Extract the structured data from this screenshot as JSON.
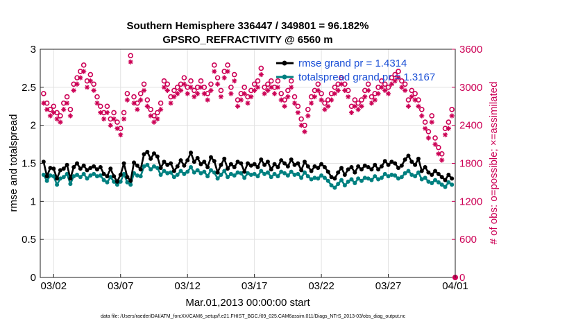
{
  "chart_data": {
    "type": "line",
    "title_line1": "Southern Hemisphere 336447 / 349801 = 96.182%",
    "title_line2": "GPSRO_REFRACTIVITY @ 6560 m",
    "xlabel": "Mar.01,2013 00:00:00 start",
    "ylabel_left": "rmse and totalspread",
    "ylabel_right": "# of obs: o=possible; ×=assimilated",
    "footnote": "data file: /Users/raeder/DAI/ATM_forcXX/CAM6_setup/f.e21.FHIST_BGC.f09_025.CAM6assim.011/Diags_NTrS_2013-03/obs_diag_output.nc",
    "xlim": [
      0,
      31
    ],
    "ylim_left": [
      0,
      3
    ],
    "ylim_right": [
      0,
      3600
    ],
    "x_ticks": [
      {
        "value": 1,
        "label": "03/02"
      },
      {
        "value": 6,
        "label": "03/07"
      },
      {
        "value": 11,
        "label": "03/12"
      },
      {
        "value": 16,
        "label": "03/17"
      },
      {
        "value": 21,
        "label": "03/22"
      },
      {
        "value": 26,
        "label": "03/27"
      },
      {
        "value": 31,
        "label": "04/01"
      }
    ],
    "y_ticks_left": [
      {
        "value": 0,
        "label": "0"
      },
      {
        "value": 0.5,
        "label": "0.5"
      },
      {
        "value": 1,
        "label": "1"
      },
      {
        "value": 1.5,
        "label": "1.5"
      },
      {
        "value": 2,
        "label": "2"
      },
      {
        "value": 2.5,
        "label": "2.5"
      },
      {
        "value": 3,
        "label": "3"
      }
    ],
    "y_ticks_right": [
      {
        "value": 0,
        "label": "0"
      },
      {
        "value": 600,
        "label": "600"
      },
      {
        "value": 1200,
        "label": "1200"
      },
      {
        "value": 1800,
        "label": "1800"
      },
      {
        "value": 2400,
        "label": "2400"
      },
      {
        "value": 3000,
        "label": "3000"
      },
      {
        "value": 3600,
        "label": "3600"
      }
    ],
    "grid": true,
    "legend_position": "top-right",
    "series_meta": [
      {
        "name": "rmse",
        "label": "rmse grand pr = 1.4314",
        "color": "#000000",
        "axis": "left"
      },
      {
        "name": "totalspread",
        "label": "totalspread grand pr = 1.3167",
        "color": "#008080",
        "axis": "left"
      },
      {
        "name": "obs_possible",
        "label": "o=possible",
        "color": "#cc0055",
        "axis": "right",
        "marker": "circle"
      },
      {
        "name": "obs_assimilated",
        "label": "×=assimilated",
        "color": "#cc0055",
        "axis": "right",
        "marker": "star"
      }
    ],
    "x": [
      0.25,
      0.5,
      0.75,
      1,
      1.25,
      1.5,
      1.75,
      2,
      2.25,
      2.5,
      2.75,
      3,
      3.25,
      3.5,
      3.75,
      4,
      4.25,
      4.5,
      4.75,
      5,
      5.25,
      5.5,
      5.75,
      6,
      6.25,
      6.5,
      6.75,
      7,
      7.25,
      7.5,
      7.75,
      8,
      8.25,
      8.5,
      8.75,
      9,
      9.25,
      9.5,
      9.75,
      10,
      10.25,
      10.5,
      10.75,
      11,
      11.25,
      11.5,
      11.75,
      12,
      12.25,
      12.5,
      12.75,
      13,
      13.25,
      13.5,
      13.75,
      14,
      14.25,
      14.5,
      14.75,
      15,
      15.25,
      15.5,
      15.75,
      16,
      16.25,
      16.5,
      16.75,
      17,
      17.25,
      17.5,
      17.75,
      18,
      18.25,
      18.5,
      18.75,
      19,
      19.25,
      19.5,
      19.75,
      20,
      20.25,
      20.5,
      20.75,
      21,
      21.25,
      21.5,
      21.75,
      22,
      22.25,
      22.5,
      22.75,
      23,
      23.25,
      23.5,
      23.75,
      24,
      24.25,
      24.5,
      24.75,
      25,
      25.25,
      25.5,
      25.75,
      26,
      26.25,
      26.5,
      26.75,
      27,
      27.25,
      27.5,
      27.75,
      28,
      28.25,
      28.5,
      28.75,
      29,
      29.25,
      29.5,
      29.75,
      30,
      30.25,
      30.5,
      30.75
    ],
    "rmse": [
      1.52,
      1.33,
      1.44,
      1.43,
      1.3,
      1.41,
      1.43,
      1.48,
      1.3,
      1.45,
      1.5,
      1.43,
      1.47,
      1.41,
      1.44,
      1.46,
      1.42,
      1.45,
      1.36,
      1.33,
      1.43,
      1.33,
      1.26,
      1.35,
      1.5,
      1.32,
      1.27,
      1.51,
      1.47,
      1.42,
      1.62,
      1.65,
      1.56,
      1.63,
      1.59,
      1.44,
      1.52,
      1.48,
      1.5,
      1.4,
      1.46,
      1.54,
      1.47,
      1.54,
      1.64,
      1.52,
      1.57,
      1.49,
      1.52,
      1.45,
      1.58,
      1.53,
      1.38,
      1.48,
      1.56,
      1.43,
      1.49,
      1.45,
      1.52,
      1.5,
      1.39,
      1.5,
      1.47,
      1.49,
      1.45,
      1.55,
      1.48,
      1.52,
      1.42,
      1.49,
      1.45,
      1.54,
      1.5,
      1.46,
      1.55,
      1.48,
      1.5,
      1.41,
      1.52,
      1.46,
      1.4,
      1.46,
      1.44,
      1.49,
      1.45,
      1.39,
      1.32,
      1.3,
      1.38,
      1.44,
      1.35,
      1.42,
      1.45,
      1.38,
      1.46,
      1.42,
      1.47,
      1.45,
      1.42,
      1.48,
      1.42,
      1.46,
      1.53,
      1.48,
      1.52,
      1.5,
      1.44,
      1.47,
      1.55,
      1.6,
      1.52,
      1.48,
      1.56,
      1.4,
      1.45,
      1.38,
      1.35,
      1.4,
      1.36,
      1.32,
      1.28,
      1.35,
      1.3,
      1.25,
      1.42
    ],
    "totalspread": [
      1.35,
      1.27,
      1.34,
      1.33,
      1.22,
      1.3,
      1.32,
      1.36,
      1.23,
      1.33,
      1.35,
      1.32,
      1.36,
      1.3,
      1.34,
      1.36,
      1.33,
      1.34,
      1.28,
      1.25,
      1.32,
      1.26,
      1.22,
      1.26,
      1.36,
      1.25,
      1.22,
      1.37,
      1.34,
      1.33,
      1.46,
      1.48,
      1.42,
      1.46,
      1.44,
      1.35,
      1.4,
      1.37,
      1.38,
      1.32,
      1.35,
      1.4,
      1.36,
      1.39,
      1.45,
      1.38,
      1.41,
      1.37,
      1.39,
      1.33,
      1.41,
      1.38,
      1.3,
      1.35,
      1.4,
      1.32,
      1.36,
      1.34,
      1.38,
      1.37,
      1.31,
      1.37,
      1.35,
      1.36,
      1.33,
      1.4,
      1.36,
      1.38,
      1.32,
      1.36,
      1.33,
      1.39,
      1.37,
      1.34,
      1.39,
      1.35,
      1.36,
      1.31,
      1.38,
      1.33,
      1.29,
      1.31,
      1.3,
      1.34,
      1.31,
      1.27,
      1.21,
      1.18,
      1.23,
      1.28,
      1.21,
      1.26,
      1.29,
      1.24,
      1.3,
      1.27,
      1.31,
      1.3,
      1.28,
      1.33,
      1.29,
      1.31,
      1.36,
      1.33,
      1.35,
      1.34,
      1.3,
      1.32,
      1.37,
      1.4,
      1.35,
      1.33,
      1.38,
      1.29,
      1.31,
      1.26,
      1.24,
      1.28,
      1.25,
      1.22,
      1.19,
      1.25,
      1.22,
      1.19,
      1.27
    ],
    "obs_possible": [
      2900,
      2750,
      2650,
      2700,
      2600,
      2550,
      2750,
      2850,
      2650,
      3050,
      3150,
      3250,
      3350,
      3100,
      3200,
      3050,
      2850,
      2700,
      2600,
      2700,
      2500,
      2600,
      2450,
      2350,
      2600,
      2900,
      3500,
      2850,
      2750,
      2900,
      3050,
      2800,
      2650,
      2550,
      2600,
      2750,
      3100,
      3050,
      2850,
      2950,
      3000,
      3050,
      3150,
      3000,
      3100,
      2950,
      3000,
      3100,
      3000,
      2900,
      3050,
      3350,
      3150,
      2950,
      3250,
      3350,
      3000,
      3200,
      2800,
      2900,
      3000,
      2850,
      2950,
      3050,
      3100,
      3300,
      3000,
      3050,
      3100,
      3000,
      3100,
      2900,
      2800,
      2950,
      3100,
      2850,
      2700,
      2500,
      2400,
      2650,
      2850,
      2950,
      3050,
      2900,
      2750,
      2800,
      2900,
      3000,
      3050,
      3150,
      3050,
      2950,
      2700,
      2800,
      2750,
      2800,
      2950,
      3050,
      2850,
      2900,
      3000,
      3100,
      3050,
      3000,
      3150,
      3200,
      3250,
      3100,
      3050,
      2800,
      2950,
      2900,
      2800,
      2650,
      2450,
      2300,
      2550,
      2200,
      2050,
      1950,
      2350,
      2450,
      2650,
      2700,
      2600
    ],
    "obs_possible_note": "o markers plotted at same x as assimilated",
    "obs_assimilated": [
      2750,
      2650,
      2550,
      2600,
      2500,
      2450,
      2650,
      2750,
      2550,
      2950,
      3050,
      3150,
      3250,
      3000,
      3100,
      2950,
      2750,
      2600,
      2500,
      2600,
      2400,
      2500,
      2350,
      2250,
      2500,
      2800,
      3400,
      2750,
      2650,
      2800,
      2950,
      2700,
      2550,
      2450,
      2500,
      2650,
      3000,
      2950,
      2750,
      2850,
      2900,
      2950,
      3050,
      2900,
      3000,
      2850,
      2900,
      3000,
      2900,
      2800,
      2950,
      3250,
      3050,
      2850,
      3150,
      3250,
      2900,
      3100,
      2700,
      2800,
      2900,
      2750,
      2850,
      2950,
      3000,
      3200,
      2900,
      2950,
      3000,
      2900,
      3000,
      2800,
      2700,
      2850,
      3000,
      2750,
      2600,
      2400,
      2300,
      2550,
      2750,
      2850,
      2950,
      2800,
      2650,
      2700,
      2800,
      2900,
      2950,
      3050,
      2950,
      2850,
      2600,
      2700,
      2650,
      2700,
      2850,
      2950,
      2750,
      2800,
      2900,
      3000,
      2950,
      2900,
      3050,
      3100,
      3150,
      3000,
      2950,
      2700,
      2850,
      2800,
      2700,
      2550,
      2350,
      2200,
      2450,
      2100,
      1950,
      1850,
      2250,
      2350,
      2550,
      2600,
      2500
    ]
  }
}
